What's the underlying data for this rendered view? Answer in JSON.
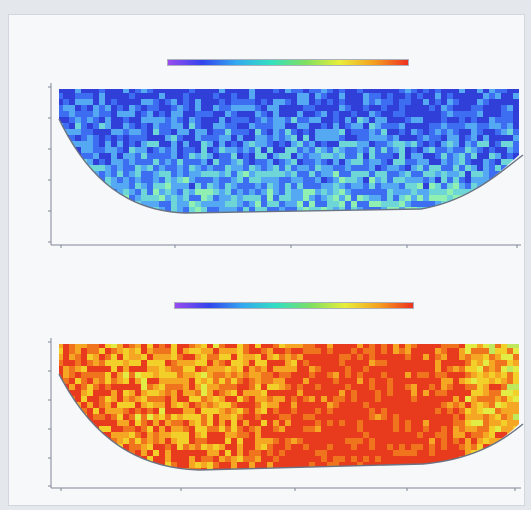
{
  "window": {
    "title": ""
  },
  "colors": {
    "background": "#e4e7ec",
    "panel": "#f7f8fa",
    "axis": "#7f8897",
    "top_map_palette": [
      "#2f3fd8",
      "#3d6df0",
      "#55a8f2",
      "#6fd6d8",
      "#8ff0b2"
    ],
    "bottom_map_palette": [
      "#e83b1e",
      "#f0741e",
      "#f5a623",
      "#f3cf2a",
      "#e2ec45",
      "#bfe85c"
    ],
    "colorbar": [
      "#9a4cf0",
      "#3344ee",
      "#33aaf0",
      "#33e0c0",
      "#7ee060",
      "#e8ee3a",
      "#f5a020",
      "#ee3020"
    ]
  },
  "panels": [
    {
      "title": "",
      "subtitle": "",
      "ylabel": "",
      "xlabel": "",
      "x_ticks": [
        "",
        "",
        "",
        "",
        ""
      ],
      "y_ticks": [
        "",
        "",
        "",
        "",
        "",
        ""
      ]
    },
    {
      "title": "",
      "subtitle": "",
      "ylabel": "",
      "xlabel": "",
      "x_ticks": [
        "",
        "",
        "",
        "",
        ""
      ],
      "y_ticks": [
        "",
        "",
        "",
        "",
        "",
        ""
      ]
    }
  ]
}
